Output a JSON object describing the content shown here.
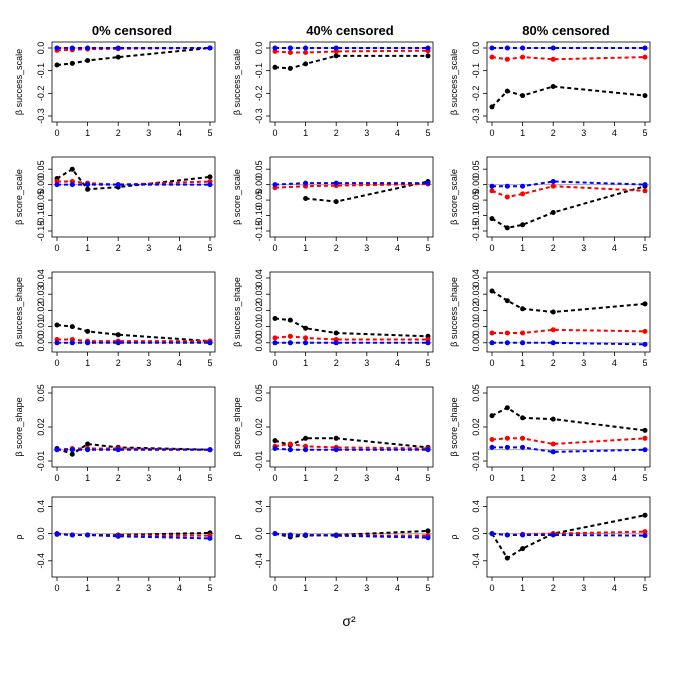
{
  "figure": {
    "xlabel": "σ²",
    "columns": [
      "0% censored",
      "40% censored",
      "80% censored"
    ],
    "rows": [
      "β success_scale",
      "β score_scale",
      "β success_shape",
      "β score_shape",
      "ρ"
    ]
  },
  "chart_data": [
    {
      "type": "line",
      "row": 0,
      "col": 0,
      "title": "0% censored",
      "ylabel": "β success_scale",
      "xlim": [
        0,
        5
      ],
      "ylim": [
        -0.3,
        0.0
      ],
      "xticks": [
        0,
        1,
        2,
        3,
        4,
        5
      ],
      "yticks": [
        0.0,
        -0.1,
        -0.2,
        -0.3
      ],
      "ytick_labels": [
        "0.0",
        "-0.1",
        "-0.2",
        "-0.3"
      ],
      "x": [
        0,
        0.5,
        1,
        2,
        5
      ],
      "series": [
        {
          "name": "black",
          "color": "#000000",
          "values": [
            -0.075,
            -0.068,
            -0.055,
            -0.04,
            0.0
          ]
        },
        {
          "name": "red",
          "color": "#ff0000",
          "values": [
            -0.01,
            -0.008,
            -0.005,
            -0.003,
            0.0
          ]
        },
        {
          "name": "blue",
          "color": "#0000ff",
          "values": [
            0.0,
            0.0,
            0.0,
            0.0,
            0.0
          ]
        }
      ]
    },
    {
      "type": "line",
      "row": 0,
      "col": 1,
      "title": "40% censored",
      "ylabel": "β success_scale",
      "xlim": [
        0,
        5
      ],
      "ylim": [
        -0.3,
        0.0
      ],
      "xticks": [
        0,
        1,
        2,
        3,
        4,
        5
      ],
      "yticks": [
        0.0,
        -0.1,
        -0.2,
        -0.3
      ],
      "ytick_labels": [
        "0.0",
        "-0.1",
        "-0.2",
        "-0.3"
      ],
      "x": [
        0,
        0.5,
        1,
        2,
        5
      ],
      "series": [
        {
          "name": "black",
          "color": "#000000",
          "values": [
            -0.085,
            -0.09,
            -0.07,
            -0.035,
            -0.035
          ]
        },
        {
          "name": "red",
          "color": "#ff0000",
          "values": [
            -0.015,
            -0.02,
            -0.02,
            -0.015,
            -0.012
          ]
        },
        {
          "name": "blue",
          "color": "#0000ff",
          "values": [
            0.0,
            0.0,
            0.0,
            0.0,
            0.0
          ]
        }
      ]
    },
    {
      "type": "line",
      "row": 0,
      "col": 2,
      "title": "80% censored",
      "ylabel": "β success_scale",
      "xlim": [
        0,
        5
      ],
      "ylim": [
        -0.3,
        0.0
      ],
      "xticks": [
        0,
        1,
        2,
        3,
        4,
        5
      ],
      "yticks": [
        0.0,
        -0.1,
        -0.2,
        -0.3
      ],
      "ytick_labels": [
        "0.0",
        "-0.1",
        "-0.2",
        "-0.3"
      ],
      "x": [
        0,
        0.5,
        1,
        2,
        5
      ],
      "series": [
        {
          "name": "black",
          "color": "#000000",
          "values": [
            -0.26,
            -0.19,
            -0.21,
            -0.17,
            -0.21
          ]
        },
        {
          "name": "red",
          "color": "#ff0000",
          "values": [
            -0.04,
            -0.05,
            -0.04,
            -0.05,
            -0.04
          ]
        },
        {
          "name": "blue",
          "color": "#0000ff",
          "values": [
            0.0,
            0.0,
            0.0,
            0.0,
            0.0
          ]
        }
      ]
    },
    {
      "type": "line",
      "row": 1,
      "col": 0,
      "title": "",
      "ylabel": "β score_scale",
      "xlim": [
        0,
        5
      ],
      "ylim": [
        -0.15,
        0.07
      ],
      "xticks": [
        0,
        1,
        2,
        3,
        4,
        5
      ],
      "yticks": [
        0.05,
        0.0,
        -0.05,
        -0.1,
        -0.15
      ],
      "ytick_labels": [
        "0.05",
        "0.00",
        "-0.05",
        "-0.10",
        "-0.15"
      ],
      "x": [
        0,
        0.5,
        1,
        2,
        5
      ],
      "series": [
        {
          "name": "black",
          "color": "#000000",
          "values": [
            0.02,
            0.05,
            -0.015,
            -0.008,
            0.025
          ]
        },
        {
          "name": "red",
          "color": "#ff0000",
          "values": [
            0.01,
            0.01,
            0.005,
            0.0,
            0.01
          ]
        },
        {
          "name": "blue",
          "color": "#0000ff",
          "values": [
            0.0,
            0.0,
            0.0,
            0.0,
            0.0
          ]
        }
      ]
    },
    {
      "type": "line",
      "row": 1,
      "col": 1,
      "title": "",
      "ylabel": "β score_scale",
      "xlim": [
        0,
        5
      ],
      "ylim": [
        -0.15,
        0.07
      ],
      "xticks": [
        0,
        1,
        2,
        3,
        4,
        5
      ],
      "yticks": [
        0.05,
        0.0,
        -0.05,
        -0.1,
        -0.15
      ],
      "ytick_labels": [
        "0.05",
        "0.00",
        "-0.05",
        "-0.10",
        "-0.15"
      ],
      "x": [
        0,
        1,
        2,
        5
      ],
      "series": [
        {
          "name": "black",
          "color": "#000000",
          "values": [
            null,
            -0.045,
            -0.055,
            0.01
          ]
        },
        {
          "name": "red",
          "color": "#ff0000",
          "values": [
            -0.01,
            -0.005,
            -0.003,
            0.002
          ]
        },
        {
          "name": "blue",
          "color": "#0000ff",
          "values": [
            0.0,
            0.005,
            0.005,
            0.005
          ]
        }
      ]
    },
    {
      "type": "line",
      "row": 1,
      "col": 2,
      "title": "",
      "ylabel": "β score_scale",
      "xlim": [
        0,
        5
      ],
      "ylim": [
        -0.15,
        0.07
      ],
      "xticks": [
        0,
        1,
        2,
        3,
        4,
        5
      ],
      "yticks": [
        0.05,
        0.0,
        -0.05,
        -0.1,
        -0.15
      ],
      "ytick_labels": [
        "0.05",
        "0.00",
        "-0.05",
        "-0.10",
        "-0.15"
      ],
      "x": [
        0,
        0.5,
        1,
        2,
        5
      ],
      "series": [
        {
          "name": "black",
          "color": "#000000",
          "values": [
            -0.11,
            -0.14,
            -0.13,
            -0.09,
            -0.005
          ]
        },
        {
          "name": "red",
          "color": "#ff0000",
          "values": [
            -0.02,
            -0.04,
            -0.03,
            -0.005,
            -0.02
          ]
        },
        {
          "name": "blue",
          "color": "#0000ff",
          "values": [
            -0.005,
            -0.005,
            -0.005,
            0.01,
            0.0
          ]
        }
      ]
    },
    {
      "type": "line",
      "row": 2,
      "col": 0,
      "title": "",
      "ylabel": "β success_shape",
      "xlim": [
        0,
        5
      ],
      "ylim": [
        -0.002,
        0.04
      ],
      "xticks": [
        0,
        1,
        2,
        3,
        4,
        5
      ],
      "yticks": [
        0.0,
        0.01,
        0.02,
        0.03,
        0.04
      ],
      "ytick_labels": [
        "0.00",
        "0.01",
        "0.02",
        "0.03",
        "0.04"
      ],
      "x": [
        0,
        0.5,
        1,
        2,
        5
      ],
      "series": [
        {
          "name": "black",
          "color": "#000000",
          "values": [
            0.011,
            0.01,
            0.007,
            0.005,
            0.001
          ]
        },
        {
          "name": "red",
          "color": "#ff0000",
          "values": [
            0.002,
            0.002,
            0.001,
            0.001,
            0.001
          ]
        },
        {
          "name": "blue",
          "color": "#0000ff",
          "values": [
            0.0,
            0.0,
            0.0,
            0.0,
            0.0
          ]
        }
      ]
    },
    {
      "type": "line",
      "row": 2,
      "col": 1,
      "title": "",
      "ylabel": "β success_shape",
      "xlim": [
        0,
        5
      ],
      "ylim": [
        -0.002,
        0.04
      ],
      "xticks": [
        0,
        1,
        2,
        3,
        4,
        5
      ],
      "yticks": [
        0.0,
        0.01,
        0.02,
        0.03,
        0.04
      ],
      "ytick_labels": [
        "0.00",
        "0.01",
        "0.02",
        "0.03",
        "0.04"
      ],
      "x": [
        0,
        0.5,
        1,
        2,
        5
      ],
      "series": [
        {
          "name": "black",
          "color": "#000000",
          "values": [
            0.015,
            0.014,
            0.009,
            0.006,
            0.004
          ]
        },
        {
          "name": "red",
          "color": "#ff0000",
          "values": [
            0.003,
            0.004,
            0.003,
            0.002,
            0.002
          ]
        },
        {
          "name": "blue",
          "color": "#0000ff",
          "values": [
            0.0,
            0.0,
            0.0,
            0.0,
            0.0
          ]
        }
      ]
    },
    {
      "type": "line",
      "row": 2,
      "col": 2,
      "title": "",
      "ylabel": "β success_shape",
      "xlim": [
        0,
        5
      ],
      "ylim": [
        -0.002,
        0.04
      ],
      "xticks": [
        0,
        1,
        2,
        3,
        4,
        5
      ],
      "yticks": [
        0.0,
        0.01,
        0.02,
        0.03,
        0.04
      ],
      "ytick_labels": [
        "0.00",
        "0.01",
        "0.02",
        "0.03",
        "0.04"
      ],
      "x": [
        0,
        0.5,
        1,
        2,
        5
      ],
      "series": [
        {
          "name": "black",
          "color": "#000000",
          "values": [
            0.032,
            0.026,
            0.021,
            0.019,
            0.024
          ]
        },
        {
          "name": "red",
          "color": "#ff0000",
          "values": [
            0.006,
            0.006,
            0.006,
            0.008,
            0.007
          ]
        },
        {
          "name": "blue",
          "color": "#0000ff",
          "values": [
            0.0,
            0.0,
            0.0,
            0.0,
            -0.001
          ]
        }
      ]
    },
    {
      "type": "line",
      "row": 3,
      "col": 0,
      "title": "",
      "ylabel": "β score_shape",
      "xlim": [
        0,
        5
      ],
      "ylim": [
        -0.01,
        0.05
      ],
      "xticks": [
        0,
        1,
        2,
        3,
        4,
        5
      ],
      "yticks": [
        0.05,
        0.02,
        -0.01
      ],
      "ytick_labels": [
        "0.05",
        "0.02",
        "-0.01"
      ],
      "x": [
        0,
        0.5,
        1,
        2,
        5
      ],
      "series": [
        {
          "name": "black",
          "color": "#000000",
          "values": [
            0.001,
            -0.004,
            0.005,
            0.002,
            0.0
          ]
        },
        {
          "name": "red",
          "color": "#ff0000",
          "values": [
            0.0,
            0.001,
            0.001,
            0.001,
            0.0
          ]
        },
        {
          "name": "blue",
          "color": "#0000ff",
          "values": [
            0.0,
            0.0,
            0.0,
            0.0,
            0.0
          ]
        }
      ]
    },
    {
      "type": "line",
      "row": 3,
      "col": 1,
      "title": "",
      "ylabel": "β score_shape",
      "xlim": [
        0,
        5
      ],
      "ylim": [
        -0.01,
        0.05
      ],
      "xticks": [
        0,
        1,
        2,
        3,
        4,
        5
      ],
      "yticks": [
        0.05,
        0.02,
        -0.01
      ],
      "ytick_labels": [
        "0.05",
        "0.02",
        "-0.01"
      ],
      "x": [
        0,
        0.5,
        1,
        2,
        5
      ],
      "series": [
        {
          "name": "black",
          "color": "#000000",
          "values": [
            0.008,
            0.004,
            0.01,
            0.01,
            0.002
          ]
        },
        {
          "name": "red",
          "color": "#ff0000",
          "values": [
            0.003,
            0.005,
            0.003,
            0.002,
            0.001
          ]
        },
        {
          "name": "blue",
          "color": "#0000ff",
          "values": [
            0.001,
            0.0,
            0.0,
            0.0,
            0.0
          ]
        }
      ]
    },
    {
      "type": "line",
      "row": 3,
      "col": 2,
      "title": "",
      "ylabel": "β score_shape",
      "xlim": [
        0,
        5
      ],
      "ylim": [
        -0.01,
        0.05
      ],
      "xticks": [
        0,
        1,
        2,
        3,
        4,
        5
      ],
      "yticks": [
        0.05,
        0.02,
        -0.01
      ],
      "ytick_labels": [
        "0.05",
        "0.02",
        "-0.01"
      ],
      "x": [
        0,
        0.5,
        1,
        2,
        5
      ],
      "series": [
        {
          "name": "black",
          "color": "#000000",
          "values": [
            0.03,
            0.037,
            0.028,
            0.027,
            0.017
          ]
        },
        {
          "name": "red",
          "color": "#ff0000",
          "values": [
            0.009,
            0.01,
            0.01,
            0.005,
            0.01
          ]
        },
        {
          "name": "blue",
          "color": "#0000ff",
          "values": [
            0.002,
            0.002,
            0.002,
            -0.002,
            0.0
          ]
        }
      ]
    },
    {
      "type": "line",
      "row": 4,
      "col": 0,
      "title": "",
      "ylabel": "ρ",
      "xlim": [
        0,
        5
      ],
      "ylim": [
        -0.55,
        0.45
      ],
      "xticks": [
        0,
        1,
        2,
        3,
        4,
        5
      ],
      "yticks": [
        0.4,
        0.0,
        -0.4
      ],
      "ytick_labels": [
        "0.4",
        "0.0",
        "-0.4"
      ],
      "x": [
        0,
        0.5,
        1,
        2,
        5
      ],
      "series": [
        {
          "name": "black",
          "color": "#000000",
          "values": [
            -0.01,
            -0.02,
            -0.02,
            -0.02,
            0.01
          ]
        },
        {
          "name": "red",
          "color": "#ff0000",
          "values": [
            0.0,
            -0.02,
            -0.02,
            -0.03,
            -0.03
          ]
        },
        {
          "name": "blue",
          "color": "#0000ff",
          "values": [
            0.0,
            -0.02,
            -0.02,
            -0.04,
            -0.07
          ]
        }
      ]
    },
    {
      "type": "line",
      "row": 4,
      "col": 1,
      "title": "",
      "ylabel": "ρ",
      "xlim": [
        0,
        5
      ],
      "ylim": [
        -0.55,
        0.45
      ],
      "xticks": [
        0,
        1,
        2,
        3,
        4,
        5
      ],
      "yticks": [
        0.4,
        0.0,
        -0.4
      ],
      "ytick_labels": [
        "0.4",
        "0.0",
        "-0.4"
      ],
      "x": [
        0,
        0.5,
        1,
        2,
        5
      ],
      "series": [
        {
          "name": "black",
          "color": "#000000",
          "values": [
            0.0,
            -0.05,
            -0.03,
            -0.02,
            0.04
          ]
        },
        {
          "name": "red",
          "color": "#ff0000",
          "values": [
            0.0,
            -0.02,
            -0.02,
            -0.03,
            -0.03
          ]
        },
        {
          "name": "blue",
          "color": "#0000ff",
          "values": [
            0.0,
            -0.02,
            -0.02,
            -0.03,
            -0.06
          ]
        }
      ]
    },
    {
      "type": "line",
      "row": 4,
      "col": 2,
      "title": "",
      "ylabel": "ρ",
      "xlim": [
        0,
        5
      ],
      "ylim": [
        -0.55,
        0.45
      ],
      "xticks": [
        0,
        1,
        2,
        3,
        4,
        5
      ],
      "yticks": [
        0.4,
        0.0,
        -0.4
      ],
      "ytick_labels": [
        "0.4",
        "0.0",
        "-0.4"
      ],
      "x": [
        0,
        0.5,
        1,
        2,
        5
      ],
      "series": [
        {
          "name": "black",
          "color": "#000000",
          "values": [
            0.0,
            -0.36,
            -0.22,
            0.0,
            0.27
          ]
        },
        {
          "name": "red",
          "color": "#ff0000",
          "values": [
            0.0,
            -0.02,
            -0.01,
            0.0,
            0.03
          ]
        },
        {
          "name": "blue",
          "color": "#0000ff",
          "values": [
            0.0,
            -0.02,
            -0.02,
            -0.02,
            -0.03
          ]
        }
      ]
    }
  ]
}
